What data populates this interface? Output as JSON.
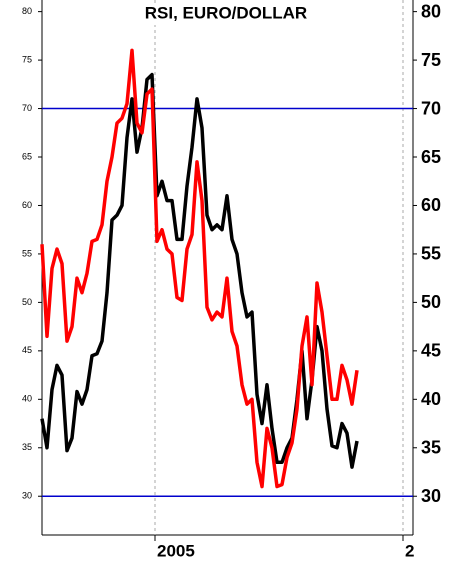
{
  "chart_data": {
    "type": "line",
    "title": "RSI, EURO/DOLLAR",
    "x": [
      0,
      1,
      2,
      3,
      4,
      5,
      6,
      7,
      8,
      9,
      10,
      11,
      12,
      13,
      14,
      15,
      16,
      17,
      18,
      19,
      20,
      21,
      22,
      23,
      24,
      25,
      26,
      27,
      28,
      29,
      30,
      31,
      32,
      33,
      34,
      35,
      36,
      37,
      38,
      39,
      40,
      41,
      42,
      43,
      44,
      45,
      46,
      47,
      48,
      49,
      50,
      51,
      52,
      53,
      54,
      55,
      56,
      57,
      58,
      59,
      60,
      61,
      62,
      63
    ],
    "series": [
      {
        "color": "#000000",
        "values": [
          38,
          35,
          41,
          43.5,
          42.5,
          34.7,
          36,
          40.8,
          39.5,
          41,
          44.5,
          44.7,
          46,
          51,
          58.5,
          59,
          60,
          67,
          71,
          65.5,
          68,
          73,
          73.5,
          61,
          62.5,
          60.5,
          60.5,
          56.5,
          56.5,
          62,
          66,
          71,
          68,
          59,
          57.5,
          58,
          57.5,
          61,
          56.5,
          55,
          51,
          48.5,
          49,
          40.5,
          37.5,
          41.5,
          37,
          33.5,
          33.5,
          35,
          36,
          40,
          45,
          38,
          42,
          47.5,
          45,
          39,
          35.2,
          35,
          37.5,
          36.5,
          33,
          35.7
        ]
      },
      {
        "color": "#ff0000",
        "values": [
          56,
          46.5,
          53.5,
          55.5,
          54,
          46,
          47.5,
          52.5,
          51,
          53,
          56.3,
          56.5,
          58,
          62.5,
          65,
          68.5,
          69,
          70.5,
          76,
          68.5,
          67.5,
          71.5,
          72,
          56.3,
          57.5,
          55.5,
          55,
          50.5,
          50.2,
          55.5,
          57,
          64.5,
          60.5,
          49.5,
          48.2,
          49,
          48.5,
          52.5,
          47,
          45.5,
          41.5,
          39.5,
          40,
          33.5,
          31,
          37,
          35,
          31,
          31.2,
          34,
          35.5,
          39,
          45.5,
          48.5,
          41.5,
          52,
          49,
          44.5,
          40,
          40,
          43.5,
          42,
          39.5,
          43
        ]
      }
    ],
    "reference_lines": [
      {
        "value": 70,
        "color": "#0000cc"
      },
      {
        "value": 30,
        "color": "#0000cc"
      }
    ],
    "xlim": [
      0,
      74.2
    ],
    "xticks": [
      {
        "value": 22.6,
        "label": "2005"
      },
      {
        "value": 72.2,
        "label": "2"
      }
    ],
    "ylim": [
      26,
      81.2
    ],
    "yticks": [
      30,
      35,
      40,
      45,
      50,
      55,
      60,
      65,
      70,
      75,
      80
    ]
  }
}
